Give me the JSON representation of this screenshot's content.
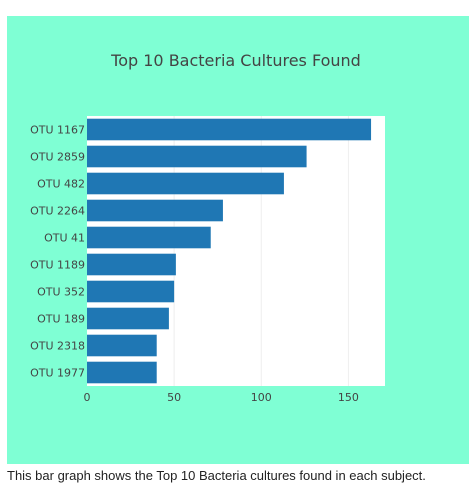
{
  "chart_data": {
    "type": "bar",
    "orientation": "horizontal",
    "title": "Top 10 Bacteria Cultures Found",
    "categories": [
      "OTU 1167",
      "OTU 2859",
      "OTU 482",
      "OTU 2264",
      "OTU 41",
      "OTU 1189",
      "OTU 352",
      "OTU 189",
      "OTU 2318",
      "OTU 1977"
    ],
    "values": [
      163,
      126,
      113,
      78,
      71,
      51,
      50,
      47,
      40,
      40
    ],
    "xlabel": "",
    "ylabel": "",
    "xlim": [
      0,
      171
    ],
    "xticks": [
      0,
      50,
      100,
      150
    ],
    "grid": true,
    "colors": {
      "bar": "#1f77b4",
      "panel_background": "#7fffd4",
      "plot_background": "#ffffff",
      "grid": "#eeeeee",
      "text": "#444444"
    }
  },
  "caption": "This bar graph shows the Top 10 Bacteria cultures found in each subject."
}
